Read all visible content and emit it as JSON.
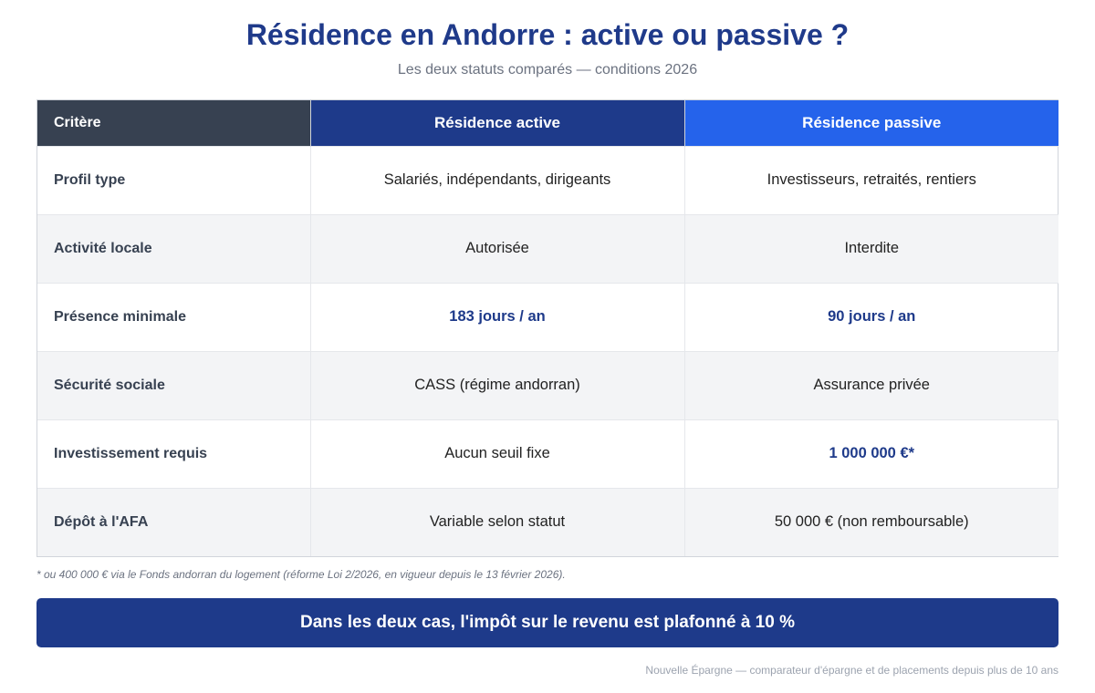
{
  "header": {
    "title": "Résidence en Andorre : active ou passive ?",
    "subtitle": "Les deux statuts comparés — conditions 2026"
  },
  "table": {
    "columns": [
      "Critère",
      "Résidence active",
      "Résidence passive"
    ],
    "rows": [
      {
        "criterion": "Profil type",
        "active": "Salariés, indépendants, dirigeants",
        "passive": "Investisseurs, retraités, rentiers"
      },
      {
        "criterion": "Activité locale",
        "active": "Autorisée",
        "passive": "Interdite"
      },
      {
        "criterion": "Présence minimale",
        "active": "183 jours / an",
        "passive": "90 jours / an"
      },
      {
        "criterion": "Sécurité sociale",
        "active": "CASS (régime andorran)",
        "passive": "Assurance privée"
      },
      {
        "criterion": "Investissement requis",
        "active": "Aucun seuil fixe",
        "passive": "1 000 000 €*"
      },
      {
        "criterion": "Dépôt à l'AFA",
        "active": "Variable selon statut",
        "passive": "50 000 € (non remboursable)"
      }
    ]
  },
  "footnote": "* ou 400 000 € via le Fonds andorran du logement (réforme Loi 2/2026, en vigueur depuis le 13 février 2026).",
  "banner": "Dans les deux cas, l'impôt sur le revenu est plafonné à 10 %",
  "footer": "Nouvelle Épargne — comparateur d'épargne et de placements depuis plus de 10 ans",
  "colors": {
    "primary": "#1e3a8a",
    "accent": "#2563eb",
    "header_dark": "#374151"
  }
}
